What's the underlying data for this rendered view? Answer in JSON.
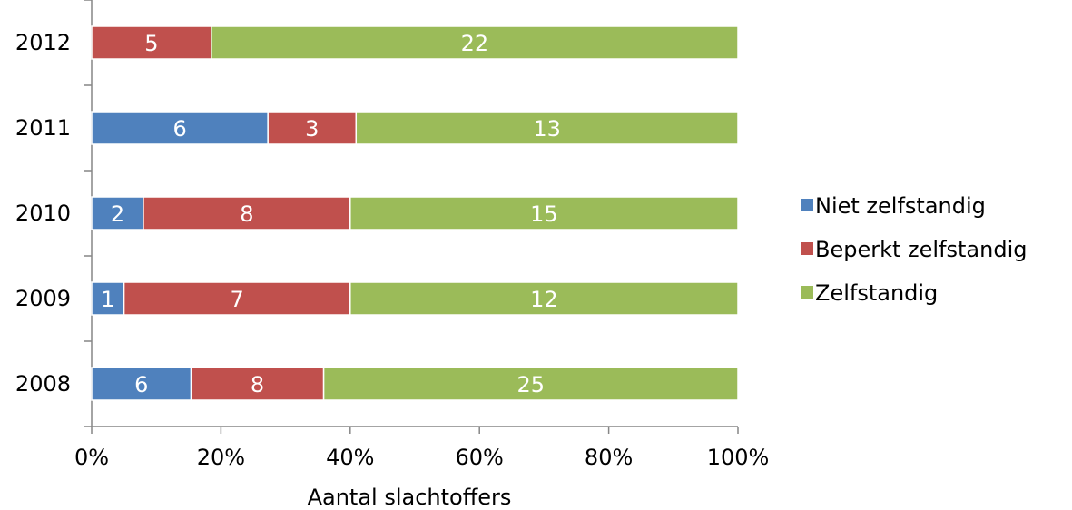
{
  "chart_data": {
    "type": "bar",
    "orientation": "horizontal",
    "stacking": "percent",
    "title": "",
    "xlabel": "Aantal slachtoffers",
    "ylabel": "",
    "categories": [
      "2012",
      "2011",
      "2010",
      "2009",
      "2008"
    ],
    "series": [
      {
        "name": "Niet zelfstandig",
        "color": "#4F81BD",
        "values": [
          0,
          6,
          2,
          1,
          6
        ]
      },
      {
        "name": "Beperkt zelfstandig",
        "color": "#C0504D",
        "values": [
          5,
          3,
          8,
          7,
          8
        ]
      },
      {
        "name": "Zelfstandig",
        "color": "#9BBB59",
        "values": [
          22,
          13,
          15,
          12,
          25
        ]
      }
    ],
    "xlim": [
      0,
      100
    ],
    "x_ticks": [
      0,
      20,
      40,
      60,
      80,
      100
    ],
    "x_tick_labels": [
      "0%",
      "20%",
      "40%",
      "60%",
      "80%",
      "100%"
    ],
    "grid": false,
    "legend_position": "right"
  }
}
